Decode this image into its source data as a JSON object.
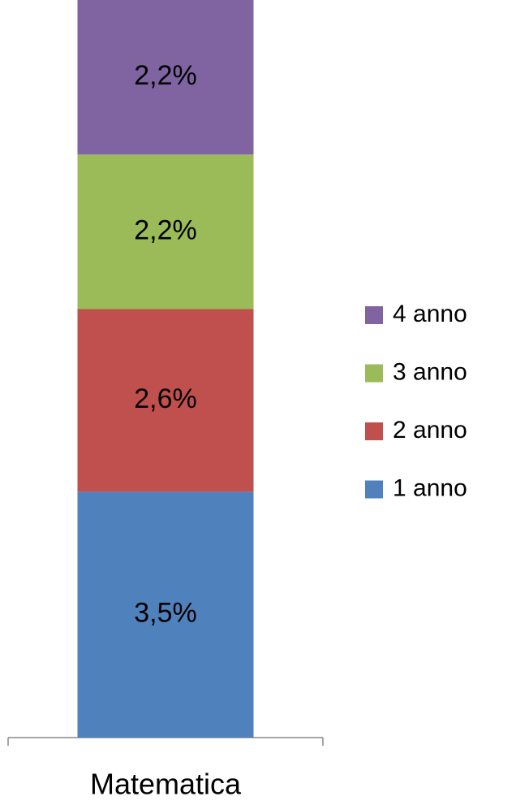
{
  "chart_data": {
    "type": "stacked_bar",
    "categories": [
      "Matematica"
    ],
    "series": [
      {
        "name": "1 anno",
        "color": "#4f81bd",
        "values": [
          3.5
        ],
        "value_labels": [
          "3,5%"
        ]
      },
      {
        "name": "2 anno",
        "color": "#c0504d",
        "values": [
          2.6
        ],
        "value_labels": [
          "2,6%"
        ]
      },
      {
        "name": "3 anno",
        "color": "#9bbb59",
        "values": [
          2.2
        ],
        "value_labels": [
          "2,2%"
        ]
      },
      {
        "name": "4 anno",
        "color": "#8064a2",
        "values": [
          2.2
        ],
        "value_labels": [
          "2,2%"
        ]
      }
    ],
    "legend": "right"
  }
}
